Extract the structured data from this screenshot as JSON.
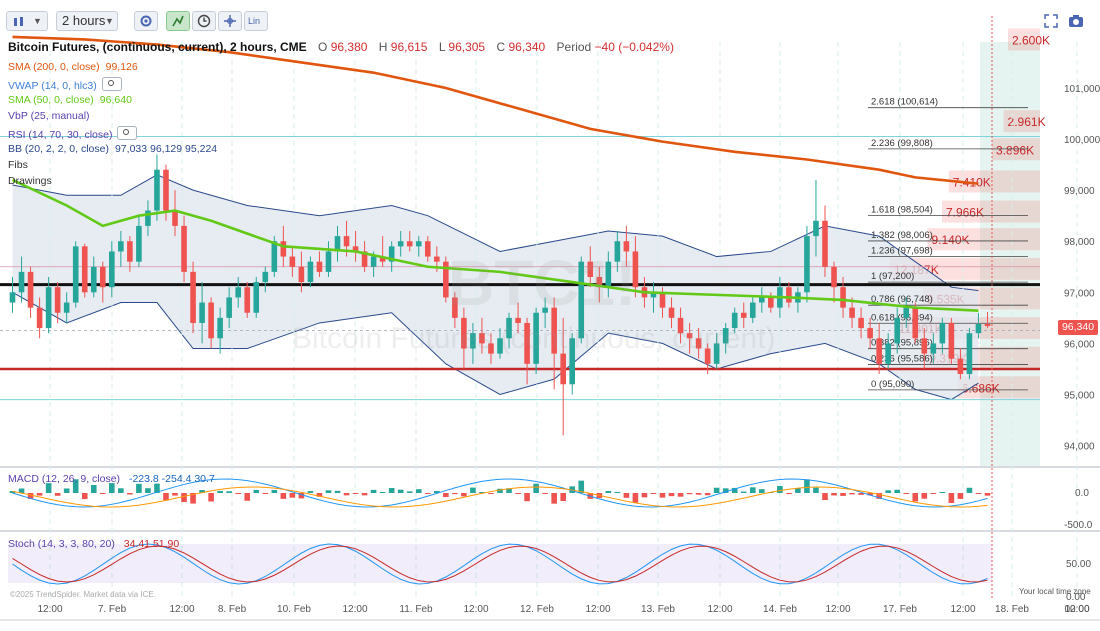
{
  "toolbar": {
    "chart_type_icon": "candles-icon",
    "interval": "2 hours",
    "buttons": [
      "settings-icon",
      "crosshair-tool-icon",
      "clock-icon",
      "draw-tool-icon"
    ],
    "scale_label": "Lin"
  },
  "header": {
    "title": "Bitcoin Futures, (continuous, current), 2 hours, CME",
    "open_label": "O",
    "open": "96,380",
    "high_label": "H",
    "high": "96,615",
    "low_label": "L",
    "low": "96,305",
    "close_label": "C",
    "close": "96,340",
    "period_label": "Period",
    "period_change": "−40 (−0.042%)"
  },
  "indicators": [
    {
      "label": "SMA (200, 0, close)",
      "value": "99,126",
      "color": "#e0560e"
    },
    {
      "label": "VWAP (14, 0, hlc3)",
      "value": "",
      "color": "#3d7fd4",
      "eye": true
    },
    {
      "label": "SMA (50, 0, close)",
      "value": "96,640",
      "color": "#62c916"
    },
    {
      "label": "VbP (25, manual)",
      "value": "",
      "color": "#5b3fb0"
    },
    {
      "label": "RSI (14, 70, 30, close)",
      "value": "",
      "color": "#5b3fb0",
      "eye": true
    },
    {
      "label": "BB (20, 2, 2, 0, close)",
      "value": "97,033  96,129  95,224",
      "color": "#2a4a8c"
    },
    {
      "label": "Fibs",
      "value": "",
      "color": "#333333"
    },
    {
      "label": "Drawings",
      "value": "",
      "color": "#333333"
    }
  ],
  "colors": {
    "up": "#26a69a",
    "down": "#ef5350",
    "sma200": "#e0560e",
    "sma50": "#62c916",
    "bb": "#2a4a8c",
    "bb_fill": "#dde5ee",
    "macd": "#2196f3",
    "signal": "#ff9800",
    "stoch_k": "#2196f3",
    "stoch_d": "#c62828",
    "price_tag": "#ef5350",
    "black_line": "#111111",
    "red_line": "#c62828",
    "cyan_line": "#7fd3dc"
  },
  "watermark": {
    "big": "BTC1!",
    "small": "Bitcoin Futures (continuous, current)"
  },
  "price_tag": "96,340",
  "macd": {
    "label": "MACD (12, 26, 9, close)",
    "values": "-223.8  -254.4  30.7",
    "ticks": [
      "0.0",
      "-500.0"
    ]
  },
  "stoch": {
    "label": "Stoch (14, 3, 3, 80, 20)",
    "values": "34.41  51.90",
    "ticks": [
      "50.00",
      "0.00"
    ]
  },
  "footer": {
    "copyright": "©2025 TrendSpider. Market data via ICE.",
    "local_time": "Your local time zone"
  },
  "chart_data": {
    "type": "candlestick",
    "title": "Bitcoin Futures, (continuous, current), 2 hours, CME",
    "y_ticks": [
      "101,000",
      "100,000",
      "99,000",
      "98,000",
      "97,000",
      "96,000",
      "95,000",
      "94,000"
    ],
    "y_range": [
      93600,
      101900
    ],
    "x_ticks": [
      "12:00",
      "7. Feb",
      "12:00",
      "8. Feb",
      "10. Feb",
      "12:00",
      "11. Feb",
      "12:00",
      "12. Feb",
      "12:00",
      "13. Feb",
      "12:00",
      "14. Feb",
      "12:00",
      "17. Feb",
      "12:00",
      "18. Feb",
      "12:00",
      "00:00"
    ],
    "candles": [
      [
        96800,
        97300,
        96600,
        97000
      ],
      [
        97000,
        97700,
        96800,
        97400
      ],
      [
        97400,
        97500,
        96500,
        96700
      ],
      [
        96700,
        96900,
        96100,
        96300
      ],
      [
        96300,
        97300,
        96200,
        97100
      ],
      [
        97100,
        97200,
        96400,
        96600
      ],
      [
        96600,
        97000,
        96400,
        96800
      ],
      [
        96800,
        98000,
        96700,
        97900
      ],
      [
        97900,
        97950,
        96900,
        97000
      ],
      [
        97000,
        97700,
        96900,
        97500
      ],
      [
        97500,
        97600,
        96800,
        97100
      ],
      [
        97100,
        98000,
        96900,
        97800
      ],
      [
        97800,
        98200,
        97500,
        98000
      ],
      [
        98000,
        98100,
        97400,
        97600
      ],
      [
        97600,
        98500,
        97500,
        98300
      ],
      [
        98300,
        98800,
        98100,
        98600
      ],
      [
        98600,
        99700,
        98400,
        99400
      ],
      [
        99400,
        99500,
        98400,
        98600
      ],
      [
        98600,
        99000,
        98100,
        98300
      ],
      [
        98300,
        98500,
        97200,
        97400
      ],
      [
        97400,
        97600,
        96200,
        96400
      ],
      [
        96400,
        97200,
        96000,
        96800
      ],
      [
        96800,
        96900,
        95900,
        96100
      ],
      [
        96100,
        96700,
        95800,
        96500
      ],
      [
        96500,
        97100,
        96300,
        96900
      ],
      [
        96900,
        97300,
        96700,
        97100
      ],
      [
        97100,
        97200,
        96500,
        96600
      ],
      [
        96600,
        97300,
        96500,
        97200
      ],
      [
        97200,
        97500,
        97000,
        97400
      ],
      [
        97400,
        98100,
        97300,
        98000
      ],
      [
        98000,
        98300,
        97500,
        97700
      ],
      [
        97700,
        97900,
        97300,
        97500
      ],
      [
        97500,
        97800,
        97000,
        97200
      ],
      [
        97200,
        97700,
        97100,
        97600
      ],
      [
        97600,
        97800,
        97300,
        97400
      ],
      [
        97400,
        98000,
        97300,
        97800
      ],
      [
        97800,
        98300,
        97600,
        98100
      ],
      [
        98100,
        98400,
        97700,
        97900
      ],
      [
        97900,
        98200,
        97600,
        97800
      ],
      [
        97800,
        98000,
        97400,
        97500
      ],
      [
        97500,
        97800,
        97300,
        97700
      ],
      [
        97700,
        98100,
        97500,
        97600
      ],
      [
        97600,
        98000,
        97400,
        97900
      ],
      [
        97900,
        98200,
        97700,
        98000
      ],
      [
        98000,
        98200,
        97800,
        97900
      ],
      [
        97900,
        98100,
        97700,
        98000
      ],
      [
        98000,
        98100,
        97600,
        97700
      ],
      [
        97700,
        97900,
        97400,
        97600
      ],
      [
        97600,
        97700,
        96800,
        96900
      ],
      [
        96900,
        97000,
        96300,
        96500
      ],
      [
        96500,
        96700,
        95500,
        95900
      ],
      [
        95900,
        96400,
        95600,
        96200
      ],
      [
        96200,
        96500,
        95800,
        96000
      ],
      [
        96000,
        96200,
        95600,
        95800
      ],
      [
        95800,
        96300,
        95700,
        96100
      ],
      [
        96100,
        96600,
        95900,
        96500
      ],
      [
        96500,
        96800,
        96200,
        96400
      ],
      [
        96400,
        96500,
        95200,
        95600
      ],
      [
        95600,
        96700,
        95400,
        96600
      ],
      [
        96600,
        96900,
        96300,
        96700
      ],
      [
        96700,
        96900,
        95100,
        95800
      ],
      [
        95800,
        96500,
        94200,
        95200
      ],
      [
        95200,
        96200,
        95000,
        96100
      ],
      [
        96100,
        97700,
        96000,
        97600
      ],
      [
        97600,
        97900,
        97100,
        97300
      ],
      [
        97300,
        97500,
        96800,
        97100
      ],
      [
        97100,
        97800,
        96900,
        97600
      ],
      [
        97600,
        98200,
        97400,
        98000
      ],
      [
        98000,
        98300,
        97500,
        97800
      ],
      [
        97800,
        98100,
        96900,
        97100
      ],
      [
        97100,
        97300,
        96700,
        96900
      ],
      [
        96900,
        97200,
        96600,
        97000
      ],
      [
        97000,
        97100,
        96500,
        96700
      ],
      [
        96700,
        96900,
        96300,
        96500
      ],
      [
        96500,
        96700,
        96000,
        96200
      ],
      [
        96200,
        96400,
        95800,
        96100
      ],
      [
        96100,
        96300,
        95700,
        95900
      ],
      [
        95900,
        96000,
        95400,
        95600
      ],
      [
        95600,
        96200,
        95500,
        96000
      ],
      [
        96000,
        96400,
        95800,
        96300
      ],
      [
        96300,
        96700,
        96200,
        96600
      ],
      [
        96600,
        96800,
        96300,
        96500
      ],
      [
        96500,
        96900,
        96400,
        96800
      ],
      [
        96800,
        97100,
        96600,
        96900
      ],
      [
        96900,
        97000,
        96600,
        96700
      ],
      [
        96700,
        97300,
        96500,
        97100
      ],
      [
        97100,
        97200,
        96700,
        96800
      ],
      [
        96800,
        97100,
        96600,
        97000
      ],
      [
        97000,
        98300,
        96800,
        98100
      ],
      [
        98100,
        99200,
        97700,
        98400
      ],
      [
        98400,
        98700,
        97300,
        97500
      ],
      [
        97500,
        97600,
        96800,
        97100
      ],
      [
        97100,
        97300,
        96500,
        96700
      ],
      [
        96700,
        96900,
        96300,
        96500
      ],
      [
        96500,
        96700,
        96100,
        96300
      ],
      [
        96300,
        96500,
        95900,
        96100
      ],
      [
        96100,
        96400,
        95400,
        95600
      ],
      [
        95600,
        96200,
        95500,
        96000
      ],
      [
        96000,
        96700,
        95800,
        96500
      ],
      [
        96500,
        96900,
        96300,
        96700
      ],
      [
        96700,
        96800,
        96000,
        96100
      ],
      [
        96100,
        96300,
        95500,
        95800
      ],
      [
        95800,
        96200,
        95600,
        96000
      ],
      [
        96000,
        96500,
        95800,
        96400
      ],
      [
        96400,
        96500,
        95600,
        95700
      ],
      [
        95700,
        95900,
        95300,
        95400
      ],
      [
        95400,
        96300,
        95300,
        96200
      ],
      [
        96200,
        96600,
        96100,
        96380
      ],
      [
        96380,
        96615,
        96305,
        96340
      ]
    ],
    "sma200_points": [
      [
        0,
        102000
      ],
      [
        8,
        101950
      ],
      [
        16,
        101850
      ],
      [
        24,
        101700
      ],
      [
        32,
        101500
      ],
      [
        40,
        101300
      ],
      [
        48,
        101000
      ],
      [
        56,
        100600
      ],
      [
        64,
        100200
      ],
      [
        72,
        99950
      ],
      [
        80,
        99750
      ],
      [
        88,
        99600
      ],
      [
        96,
        99400
      ],
      [
        100,
        99250
      ],
      [
        107,
        99126
      ]
    ],
    "sma50_points": [
      [
        0,
        99200
      ],
      [
        6,
        98700
      ],
      [
        10,
        98300
      ],
      [
        14,
        98500
      ],
      [
        18,
        98600
      ],
      [
        22,
        98400
      ],
      [
        30,
        97900
      ],
      [
        38,
        97800
      ],
      [
        46,
        97500
      ],
      [
        54,
        97400
      ],
      [
        62,
        97200
      ],
      [
        70,
        97000
      ],
      [
        78,
        96950
      ],
      [
        86,
        96900
      ],
      [
        92,
        96850
      ],
      [
        100,
        96700
      ],
      [
        107,
        96640
      ]
    ],
    "bb_upper": [
      [
        0,
        99100
      ],
      [
        6,
        98900
      ],
      [
        12,
        98900
      ],
      [
        16,
        99300
      ],
      [
        20,
        99000
      ],
      [
        26,
        98700
      ],
      [
        34,
        98500
      ],
      [
        42,
        98700
      ],
      [
        46,
        98500
      ],
      [
        54,
        97800
      ],
      [
        60,
        98000
      ],
      [
        66,
        98200
      ],
      [
        72,
        98100
      ],
      [
        78,
        97700
      ],
      [
        84,
        97800
      ],
      [
        90,
        98300
      ],
      [
        96,
        98100
      ],
      [
        100,
        97600
      ],
      [
        104,
        97100
      ],
      [
        107,
        97033
      ]
    ],
    "bb_lower": [
      [
        0,
        97000
      ],
      [
        6,
        96400
      ],
      [
        12,
        96800
      ],
      [
        16,
        96800
      ],
      [
        20,
        95900
      ],
      [
        26,
        95900
      ],
      [
        34,
        96400
      ],
      [
        42,
        96600
      ],
      [
        48,
        95600
      ],
      [
        54,
        95000
      ],
      [
        60,
        95300
      ],
      [
        66,
        96200
      ],
      [
        72,
        96000
      ],
      [
        78,
        95500
      ],
      [
        84,
        95800
      ],
      [
        90,
        96000
      ],
      [
        96,
        95600
      ],
      [
        100,
        95100
      ],
      [
        104,
        94900
      ],
      [
        107,
        95224
      ]
    ],
    "levels": {
      "black": 97150,
      "red": 95500,
      "cyan_top": 100050,
      "cyan_bottom": 94900
    },
    "fib_levels": [
      {
        "label": "2.618 (100,614)",
        "price": 100614
      },
      {
        "label": "2.236 (99,808)",
        "price": 99808
      },
      {
        "label": "1.618 (98,504)",
        "price": 98504
      },
      {
        "label": "1.382 (98,006)",
        "price": 98006
      },
      {
        "label": "1.236 (97,698)",
        "price": 97698
      },
      {
        "label": "1 (97,200)",
        "price": 97200
      },
      {
        "label": "0.786 (96,748)",
        "price": 96748
      },
      {
        "label": "0.618 (96,394)",
        "price": 96394
      },
      {
        "label": "0.382 (95,896)",
        "price": 95896
      },
      {
        "label": "0.236 (95,586)",
        "price": 95586
      },
      {
        "label": "0 (95,090)",
        "price": 95090
      }
    ],
    "volume_profile_labels": [
      {
        "label": "2.600K",
        "price": 101950
      },
      {
        "label": "2.961K",
        "price": 100350
      },
      {
        "label": "3.896K",
        "price": 99800
      },
      {
        "label": "7.410K",
        "price": 99170
      },
      {
        "label": "7.966K",
        "price": 98580
      },
      {
        "label": "9.140K",
        "price": 98040
      },
      {
        "label": "12.187K",
        "price": 97460
      },
      {
        "label": "9.535K",
        "price": 96880
      },
      {
        "label": "11.801K",
        "price": 96300
      },
      {
        "label": "9.319K",
        "price": 95720
      },
      {
        "label": "6.686K",
        "price": 95140
      }
    ]
  }
}
